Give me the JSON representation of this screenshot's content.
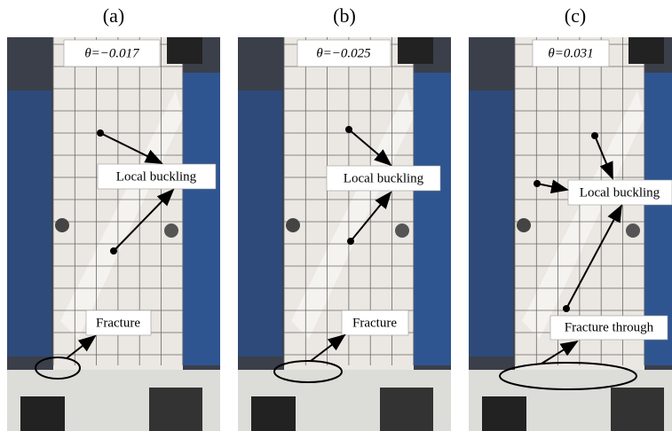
{
  "panels": [
    {
      "label": "(a)",
      "theta": "θ=−0.017",
      "annotations": [
        "Local buckling",
        "Fracture"
      ]
    },
    {
      "label": "(b)",
      "theta": "θ=−0.025",
      "annotations": [
        "Local buckling",
        "Fracture"
      ]
    },
    {
      "label": "(c)",
      "theta": "θ=0.031",
      "annotations": [
        "Local buckling",
        "Fracture through"
      ]
    }
  ]
}
